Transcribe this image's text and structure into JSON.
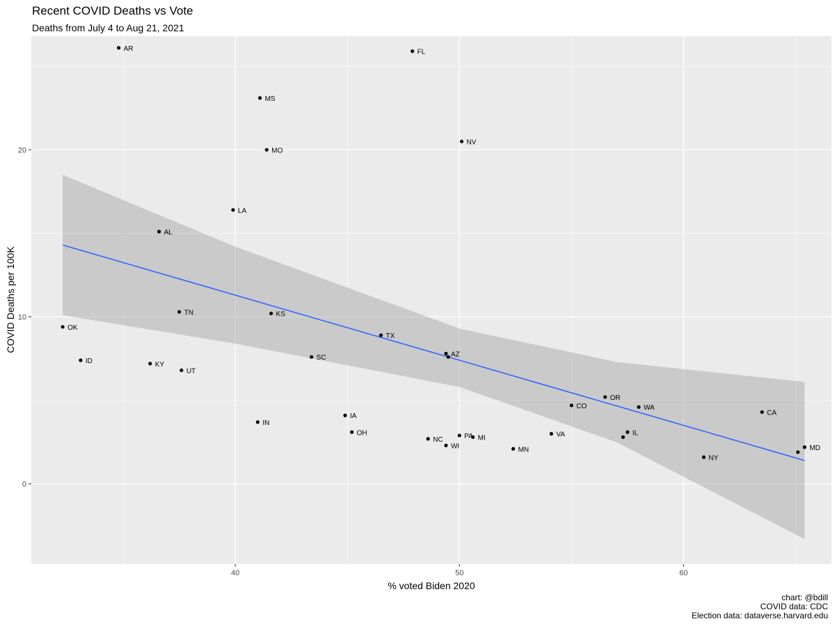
{
  "chart_data": {
    "type": "scatter",
    "title": "Recent COVID Deaths vs Vote",
    "subtitle": "Deaths from July 4 to Aug 21, 2021",
    "xlabel": "% voted Biden 2020",
    "ylabel": "COVID Deaths per 100K",
    "xlim": [
      30.9,
      66.6
    ],
    "ylim": [
      -4.8,
      26.8
    ],
    "x_ticks": [
      40,
      50,
      60
    ],
    "y_ticks": [
      0,
      10,
      20
    ],
    "grid": true,
    "points": [
      {
        "label": "AR",
        "x": 34.8,
        "y": 26.1
      },
      {
        "label": "FL",
        "x": 47.9,
        "y": 25.9
      },
      {
        "label": "MS",
        "x": 41.1,
        "y": 23.1
      },
      {
        "label": "NV",
        "x": 50.1,
        "y": 20.5
      },
      {
        "label": "MO",
        "x": 41.4,
        "y": 20.0
      },
      {
        "label": "LA",
        "x": 39.9,
        "y": 16.4
      },
      {
        "label": "AL",
        "x": 36.6,
        "y": 15.1
      },
      {
        "label": "TN",
        "x": 37.5,
        "y": 10.3
      },
      {
        "label": "KS",
        "x": 41.6,
        "y": 10.2
      },
      {
        "label": "OK",
        "x": 32.3,
        "y": 9.4
      },
      {
        "label": "TX",
        "x": 46.5,
        "y": 8.9
      },
      {
        "label": "AZ",
        "x": 49.4,
        "y": 7.8
      },
      {
        "label": "SC",
        "x": 43.4,
        "y": 7.6
      },
      {
        "label": "ID",
        "x": 33.1,
        "y": 7.4
      },
      {
        "label": "KY",
        "x": 36.2,
        "y": 7.2
      },
      {
        "label": "UT",
        "x": 37.6,
        "y": 6.8
      },
      {
        "label": "OR",
        "x": 56.5,
        "y": 5.2
      },
      {
        "label": "CO",
        "x": 55.0,
        "y": 4.7
      },
      {
        "label": "WA",
        "x": 58.0,
        "y": 4.6
      },
      {
        "label": "CA",
        "x": 63.5,
        "y": 4.3
      },
      {
        "label": "IA",
        "x": 44.9,
        "y": 4.1
      },
      {
        "label": "IN",
        "x": 41.0,
        "y": 3.7
      },
      {
        "label": "OH",
        "x": 45.2,
        "y": 3.1
      },
      {
        "label": "VA",
        "x": 54.1,
        "y": 3.0
      },
      {
        "label": "IL",
        "x": 57.5,
        "y": 3.1
      },
      {
        "label": "PA",
        "x": 50.0,
        "y": 2.9
      },
      {
        "label": "MI",
        "x": 50.6,
        "y": 2.8
      },
      {
        "label": "NC",
        "x": 48.6,
        "y": 2.7
      },
      {
        "label": "WI",
        "x": 49.4,
        "y": 2.3
      },
      {
        "label": "MD",
        "x": 65.4,
        "y": 2.2
      },
      {
        "label": "MN",
        "x": 52.4,
        "y": 2.1
      },
      {
        "label": "NY",
        "x": 60.9,
        "y": 1.6
      }
    ],
    "extra_points": [
      {
        "x": 49.5,
        "y": 7.6
      },
      {
        "x": 57.3,
        "y": 2.8
      },
      {
        "x": 65.1,
        "y": 1.9
      }
    ],
    "trend_line": {
      "x": [
        32.3,
        65.4
      ],
      "y": [
        14.3,
        1.4
      ]
    },
    "confidence_band": {
      "x": [
        32.3,
        40,
        50,
        57,
        65.4
      ],
      "upper": [
        18.5,
        14.2,
        9.3,
        7.3,
        6.1
      ],
      "lower": [
        10.1,
        8.4,
        5.8,
        2.5,
        -3.3
      ]
    },
    "colors": {
      "panel": "#ebebeb",
      "grid": "#ffffff",
      "trend": "#3366ff",
      "band": "#999999",
      "point": "#000000"
    }
  },
  "caption": {
    "line1": "chart: @bdill",
    "line2": "COVID data: CDC",
    "line3": "Election data: dataverse.harvard.edu"
  }
}
